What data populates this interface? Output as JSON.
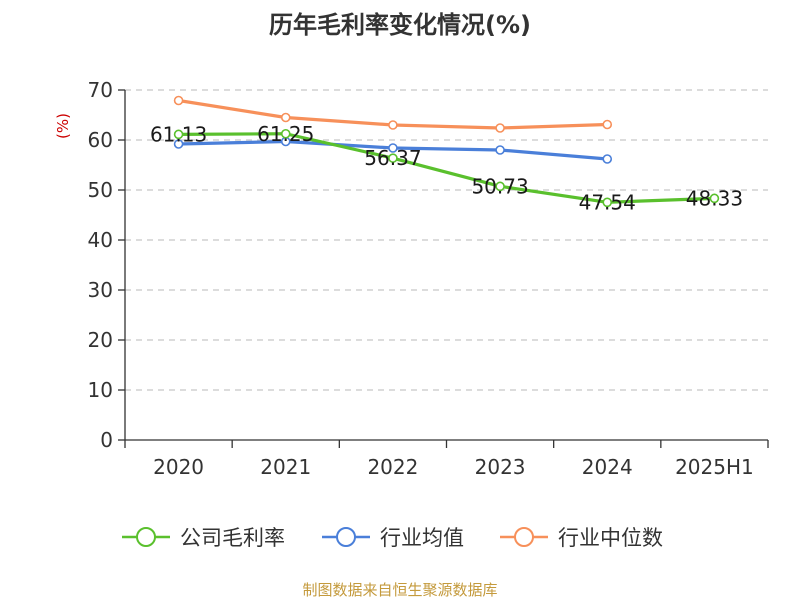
{
  "chart_data": {
    "type": "line",
    "title": "历年毛利率变化情况(%)",
    "unit_label": "(%)",
    "categories": [
      "2020",
      "2021",
      "2022",
      "2023",
      "2024",
      "2025H1"
    ],
    "ylim": [
      0,
      70
    ],
    "yticks": [
      0,
      10,
      20,
      30,
      40,
      50,
      60,
      70
    ],
    "grid": true,
    "legend_position": "bottom",
    "series": [
      {
        "name": "公司毛利率",
        "color": "#5ac02d",
        "show_labels": true,
        "values": [
          61.13,
          61.25,
          56.37,
          50.73,
          47.54,
          48.33
        ]
      },
      {
        "name": "行业均值",
        "color": "#4a7fd9",
        "show_labels": false,
        "values": [
          59.2,
          59.7,
          58.4,
          58.0,
          56.2,
          null
        ]
      },
      {
        "name": "行业中位数",
        "color": "#f7905a",
        "show_labels": false,
        "values": [
          67.9,
          64.5,
          63.0,
          62.4,
          63.1,
          null
        ]
      }
    ],
    "source": "制图数据来自恒生聚源数据库"
  }
}
